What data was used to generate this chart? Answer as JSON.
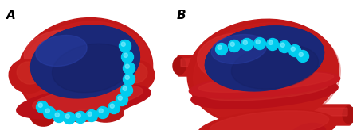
{
  "bg_color": "#f0f0f0",
  "label_A": "A",
  "label_B": "B",
  "label_fontsize": 11,
  "red1": "#c41820",
  "red2": "#a81015",
  "red3": "#d83030",
  "red_hi": "#e05050",
  "blue1": "#1a2870",
  "blue2": "#253898",
  "blue_hi": "#3050b0",
  "cyan": "#00ccee",
  "cyan_hi": "#80eeff",
  "white": "#ffffff",
  "figw": 4.43,
  "figh": 1.64,
  "dpi": 100
}
